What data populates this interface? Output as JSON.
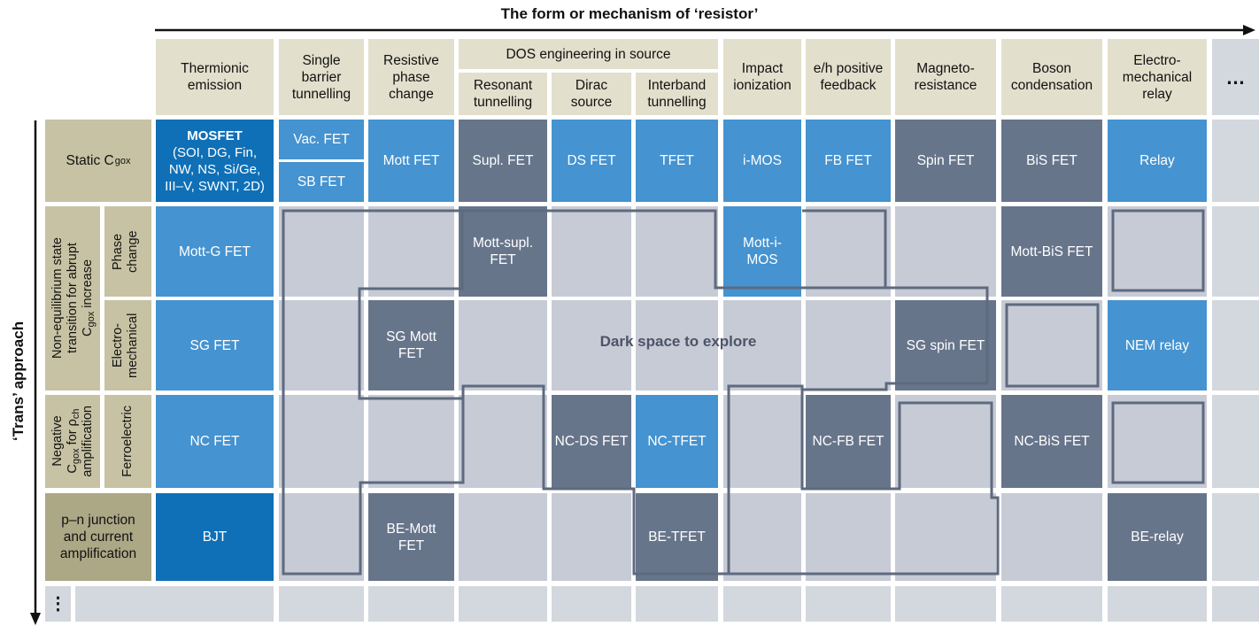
{
  "title_top": "The form or mechanism of ‘resistor’",
  "title_left": "‘Trans’ approach",
  "columns": {
    "thermionic": "Thermionic emission",
    "single_barrier": "Single barrier tunnelling",
    "resistive_phase": "Resistive phase change",
    "dos_group": "DOS engineering in source",
    "resonant": "Resonant tunnelling",
    "dirac": "Dirac source",
    "interband": "Interband tunnelling",
    "impact": "Impact ionization",
    "eh": "e/h positive feedback",
    "magneto": "Magneto-resistance",
    "boson": "Boson condensation",
    "electromech": "Electro-mechanical relay",
    "more": "…"
  },
  "rows": {
    "static": "Static C",
    "static_sub": "gox",
    "noneq_line1": "Non-equilibrium state",
    "noneq_line2": "transition for abrupt",
    "noneq_line3_main": "C",
    "noneq_line3_sub": "gox",
    "noneq_line3_rest": " increase",
    "phase_change": "Phase change",
    "electro_mech": "Electro-mechanical",
    "neg_line1": "Negative",
    "neg_line2_main": "C",
    "neg_line2_sub": "gox",
    "neg_line2_rest": " for ρ",
    "neg_line2_sub2": "ch",
    "neg_line3": "amplification",
    "ferroelectric": "Ferroelectric",
    "pn": "p–n junction and current amplification",
    "more": "⋮"
  },
  "cells": {
    "mosfet_title": "MOSFET",
    "mosfet_detail": "(SOI, DG, Fin, NW, NS, Si/Ge, III–V, SWNT, 2D)",
    "vac_fet": "Vac. FET",
    "sb_fet": "SB FET",
    "mott_fet": "Mott FET",
    "supl_fet": "Supl. FET",
    "ds_fet": "DS FET",
    "tfet": "TFET",
    "imos": "i-MOS",
    "fb_fet": "FB FET",
    "spin_fet": "Spin FET",
    "bis_fet": "BiS FET",
    "relay": "Relay",
    "mott_g_fet": "Mott-G FET",
    "mott_supl_fet": "Mott-supl. FET",
    "mott_i_mos": "Mott-i-MOS",
    "mott_bis_fet": "Mott-BiS FET",
    "sg_fet": "SG FET",
    "sg_mott_fet": "SG Mott FET",
    "sg_spin_fet": "SG spin FET",
    "nem_relay": "NEM relay",
    "nc_fet": "NC FET",
    "nc_ds_fet": "NC-DS FET",
    "nc_tfet": "NC-TFET",
    "nc_fb_fet": "NC-FB FET",
    "nc_bis_fet": "NC-BiS FET",
    "bjt": "BJT",
    "be_mott_fet": "BE-Mott FET",
    "be_tfet": "BE-TFET",
    "be_relay": "BE-relay"
  },
  "dark_space": "Dark space to explore",
  "colors": {
    "header": "#e2dfcc",
    "row_header": "#c7c2a3",
    "mosfet": "#0f70b7",
    "blue": "#4593d0",
    "slate": "#67758b",
    "empty": "#c7cbd6",
    "outline": "#5e6a7e"
  }
}
